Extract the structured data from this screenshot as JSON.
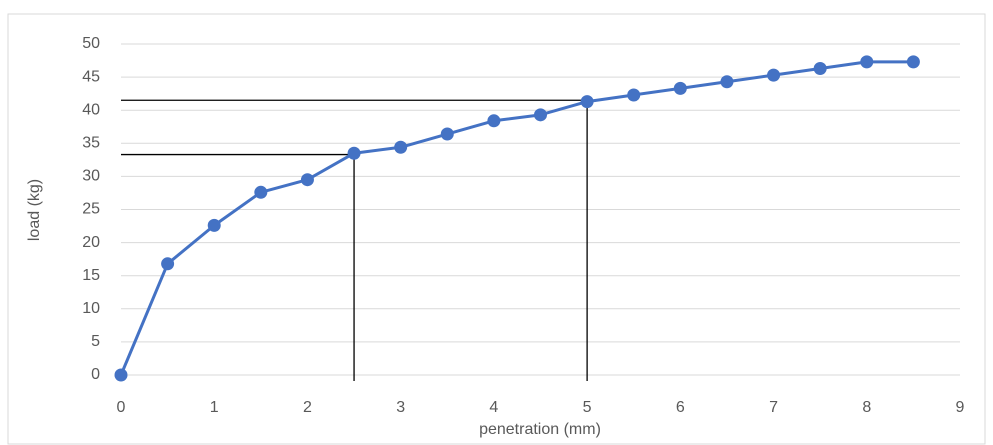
{
  "chart_data": {
    "type": "line",
    "x": [
      0,
      0.5,
      1,
      1.5,
      2,
      2.5,
      3,
      3.5,
      4,
      4.5,
      5,
      5.5,
      6,
      6.5,
      7,
      7.5,
      8,
      8.5
    ],
    "series": [
      {
        "color": "#4472c4",
        "values": [
          0,
          16.8,
          22.6,
          27.6,
          29.5,
          33.5,
          34.4,
          36.4,
          38.4,
          39.3,
          41.3,
          42.3,
          43.3,
          44.3,
          45.3,
          46.3,
          47.3,
          47.3
        ]
      }
    ],
    "xlabel": "penetration (mm)",
    "ylabel": "load (kg)",
    "xlim": [
      0,
      9
    ],
    "xticks": [
      0,
      1,
      2,
      3,
      4,
      5,
      6,
      7,
      8,
      9
    ],
    "ylim": [
      0,
      50
    ],
    "yticks": [
      0,
      5,
      10,
      15,
      20,
      25,
      30,
      35,
      40,
      45,
      50
    ],
    "grid": true,
    "reference_lines": [
      {
        "x": 2.5,
        "y": 33.3
      },
      {
        "x": 5,
        "y": 41.5
      }
    ]
  }
}
